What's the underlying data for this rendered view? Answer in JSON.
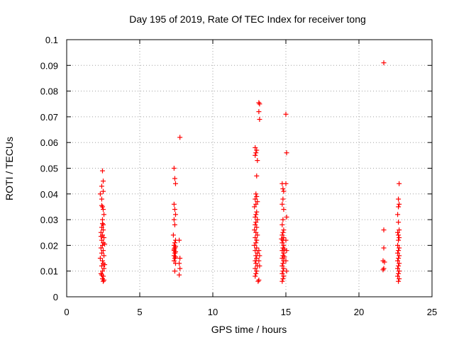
{
  "chart_data": {
    "type": "scatter",
    "title": "Day 195 of 2019, Rate Of TEC Index for receiver tong",
    "xlabel": "GPS time / hours",
    "ylabel": "ROTI / TECUs",
    "xlim": [
      0,
      25
    ],
    "ylim": [
      0,
      0.1
    ],
    "xticks": [
      0,
      5,
      10,
      15,
      20,
      25
    ],
    "yticks": [
      0,
      0.01,
      0.02,
      0.03,
      0.04,
      0.05,
      0.06,
      0.07,
      0.08,
      0.09,
      0.1
    ],
    "xtick_labels": [
      "0",
      "5",
      "10",
      "15",
      "20",
      "25"
    ],
    "ytick_labels": [
      "0",
      "0.01",
      "0.02",
      "0.03",
      "0.04",
      "0.05",
      "0.06",
      "0.07",
      "0.08",
      "0.09",
      "0.1"
    ],
    "grid": true,
    "marker": "+",
    "color": "#ff0000",
    "series": [
      {
        "name": "ROTI",
        "points": [
          [
            2.3,
            0.04
          ],
          [
            2.45,
            0.049
          ],
          [
            2.5,
            0.045
          ],
          [
            2.4,
            0.043
          ],
          [
            2.5,
            0.041
          ],
          [
            2.4,
            0.038
          ],
          [
            2.45,
            0.035
          ],
          [
            2.5,
            0.034
          ],
          [
            2.55,
            0.032
          ],
          [
            2.45,
            0.03
          ],
          [
            2.5,
            0.028
          ],
          [
            2.4,
            0.027
          ],
          [
            2.5,
            0.026
          ],
          [
            2.35,
            0.025
          ],
          [
            2.45,
            0.024
          ],
          [
            2.55,
            0.023
          ],
          [
            2.4,
            0.022
          ],
          [
            2.5,
            0.021
          ],
          [
            2.45,
            0.02
          ],
          [
            2.35,
            0.019
          ],
          [
            2.5,
            0.018
          ],
          [
            2.4,
            0.017
          ],
          [
            2.55,
            0.016
          ],
          [
            2.3,
            0.015
          ],
          [
            2.45,
            0.014
          ],
          [
            2.5,
            0.013
          ],
          [
            2.4,
            0.012
          ],
          [
            2.55,
            0.011
          ],
          [
            2.45,
            0.01
          ],
          [
            2.35,
            0.009
          ],
          [
            2.5,
            0.008
          ],
          [
            2.45,
            0.007
          ],
          [
            2.5,
            0.006
          ],
          [
            2.55,
            0.0065
          ],
          [
            2.4,
            0.0085
          ],
          [
            2.6,
            0.0125
          ],
          [
            2.35,
            0.0235
          ],
          [
            2.6,
            0.0205
          ],
          [
            2.4,
            0.0355
          ],
          [
            2.45,
            0.0285
          ],
          [
            7.35,
            0.05
          ],
          [
            7.4,
            0.046
          ],
          [
            7.45,
            0.044
          ],
          [
            7.35,
            0.036
          ],
          [
            7.4,
            0.034
          ],
          [
            7.45,
            0.032
          ],
          [
            7.35,
            0.03
          ],
          [
            7.4,
            0.028
          ],
          [
            7.3,
            0.024
          ],
          [
            7.45,
            0.022
          ],
          [
            7.4,
            0.021
          ],
          [
            7.35,
            0.02
          ],
          [
            7.45,
            0.0195
          ],
          [
            7.4,
            0.019
          ],
          [
            7.35,
            0.018
          ],
          [
            7.45,
            0.0175
          ],
          [
            7.4,
            0.017
          ],
          [
            7.35,
            0.016
          ],
          [
            7.45,
            0.0155
          ],
          [
            7.4,
            0.015
          ],
          [
            7.35,
            0.014
          ],
          [
            7.45,
            0.013
          ],
          [
            7.4,
            0.01
          ],
          [
            7.35,
            0.0185
          ],
          [
            7.75,
            0.062
          ],
          [
            7.7,
            0.022
          ],
          [
            7.75,
            0.015
          ],
          [
            7.7,
            0.013
          ],
          [
            7.75,
            0.011
          ],
          [
            7.7,
            0.0085
          ],
          [
            12.9,
            0.058
          ],
          [
            13.0,
            0.057
          ],
          [
            12.95,
            0.056
          ],
          [
            12.9,
            0.055
          ],
          [
            13.05,
            0.053
          ],
          [
            13.0,
            0.047
          ],
          [
            12.95,
            0.04
          ],
          [
            13.0,
            0.039
          ],
          [
            12.9,
            0.038
          ],
          [
            13.05,
            0.037
          ],
          [
            12.95,
            0.036
          ],
          [
            12.85,
            0.035
          ],
          [
            13.0,
            0.033
          ],
          [
            12.95,
            0.032
          ],
          [
            12.9,
            0.031
          ],
          [
            13.05,
            0.03
          ],
          [
            12.95,
            0.029
          ],
          [
            12.9,
            0.028
          ],
          [
            13.0,
            0.027
          ],
          [
            12.85,
            0.026
          ],
          [
            12.95,
            0.025
          ],
          [
            13.05,
            0.024
          ],
          [
            12.9,
            0.023
          ],
          [
            13.0,
            0.022
          ],
          [
            12.95,
            0.021
          ],
          [
            12.85,
            0.02
          ],
          [
            13.0,
            0.019
          ],
          [
            12.9,
            0.018
          ],
          [
            13.05,
            0.017
          ],
          [
            12.95,
            0.016
          ],
          [
            13.0,
            0.015
          ],
          [
            12.9,
            0.014
          ],
          [
            12.95,
            0.013
          ],
          [
            13.05,
            0.012
          ],
          [
            12.9,
            0.011
          ],
          [
            13.0,
            0.01
          ],
          [
            12.95,
            0.009
          ],
          [
            12.9,
            0.008
          ],
          [
            13.1,
            0.006
          ],
          [
            13.15,
            0.0065
          ],
          [
            13.15,
            0.0755
          ],
          [
            13.2,
            0.075
          ],
          [
            13.15,
            0.072
          ],
          [
            13.2,
            0.069
          ],
          [
            13.15,
            0.018
          ],
          [
            13.2,
            0.016
          ],
          [
            13.15,
            0.014
          ],
          [
            13.2,
            0.012
          ],
          [
            14.75,
            0.044
          ],
          [
            14.8,
            0.042
          ],
          [
            14.85,
            0.041
          ],
          [
            14.8,
            0.038
          ],
          [
            14.75,
            0.036
          ],
          [
            14.85,
            0.034
          ],
          [
            14.8,
            0.03
          ],
          [
            14.75,
            0.028
          ],
          [
            14.85,
            0.026
          ],
          [
            14.8,
            0.025
          ],
          [
            14.75,
            0.024
          ],
          [
            14.85,
            0.023
          ],
          [
            14.8,
            0.022
          ],
          [
            14.75,
            0.021
          ],
          [
            14.85,
            0.02
          ],
          [
            14.8,
            0.019
          ],
          [
            14.75,
            0.018
          ],
          [
            14.85,
            0.017
          ],
          [
            14.8,
            0.016
          ],
          [
            14.75,
            0.015
          ],
          [
            14.85,
            0.014
          ],
          [
            14.8,
            0.013
          ],
          [
            14.75,
            0.012
          ],
          [
            14.85,
            0.011
          ],
          [
            14.8,
            0.01
          ],
          [
            14.75,
            0.009
          ],
          [
            14.85,
            0.008
          ],
          [
            14.8,
            0.007
          ],
          [
            14.75,
            0.006
          ],
          [
            14.9,
            0.0185
          ],
          [
            14.7,
            0.0225
          ],
          [
            14.9,
            0.0155
          ],
          [
            15.0,
            0.071
          ],
          [
            15.05,
            0.056
          ],
          [
            15.0,
            0.044
          ],
          [
            15.05,
            0.031
          ],
          [
            15.0,
            0.022
          ],
          [
            15.05,
            0.018
          ],
          [
            15.0,
            0.014
          ],
          [
            15.05,
            0.01
          ],
          [
            21.7,
            0.091
          ],
          [
            21.7,
            0.026
          ],
          [
            21.7,
            0.019
          ],
          [
            21.65,
            0.014
          ],
          [
            21.75,
            0.0135
          ],
          [
            21.7,
            0.011
          ],
          [
            21.65,
            0.0105
          ],
          [
            22.75,
            0.044
          ],
          [
            22.7,
            0.038
          ],
          [
            22.75,
            0.036
          ],
          [
            22.7,
            0.035
          ],
          [
            22.65,
            0.032
          ],
          [
            22.7,
            0.029
          ],
          [
            22.75,
            0.026
          ],
          [
            22.65,
            0.025
          ],
          [
            22.7,
            0.024
          ],
          [
            22.75,
            0.023
          ],
          [
            22.7,
            0.022
          ],
          [
            22.65,
            0.02
          ],
          [
            22.75,
            0.019
          ],
          [
            22.7,
            0.018
          ],
          [
            22.65,
            0.017
          ],
          [
            22.75,
            0.016
          ],
          [
            22.7,
            0.015
          ],
          [
            22.65,
            0.014
          ],
          [
            22.75,
            0.013
          ],
          [
            22.7,
            0.012
          ],
          [
            22.65,
            0.011
          ],
          [
            22.75,
            0.01
          ],
          [
            22.7,
            0.009
          ],
          [
            22.65,
            0.008
          ],
          [
            22.75,
            0.007
          ],
          [
            22.7,
            0.006
          ]
        ]
      }
    ]
  }
}
